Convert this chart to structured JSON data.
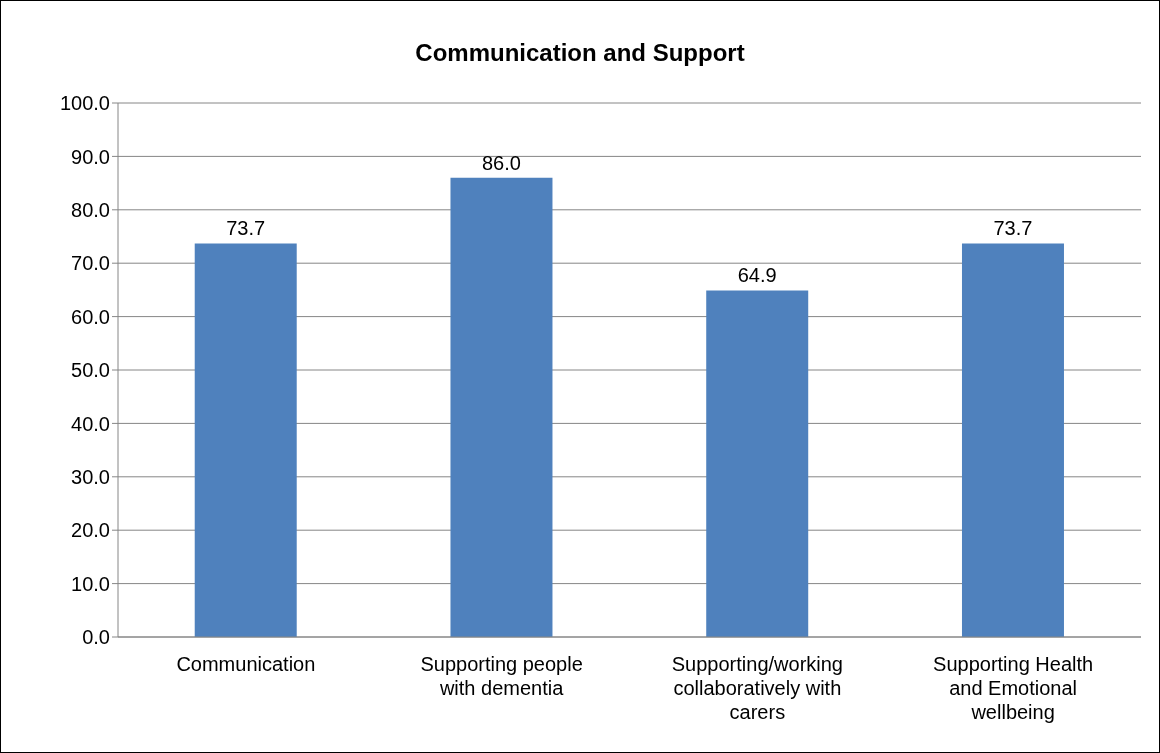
{
  "chart_data": {
    "type": "bar",
    "title": "Communication and Support",
    "categories": [
      "Communication",
      "Supporting people with dementia",
      "Supporting/working collaboratively with carers",
      "Supporting Health and Emotional wellbeing"
    ],
    "values": [
      73.7,
      86.0,
      64.9,
      73.7
    ],
    "value_labels": [
      "73.7",
      "86.0",
      "64.9",
      "73.7"
    ],
    "color": "#4f81bd",
    "ylim": [
      0,
      100
    ],
    "yticks": [
      {
        "value": 0,
        "label": "0.0"
      },
      {
        "value": 10,
        "label": "10.0"
      },
      {
        "value": 20,
        "label": "20.0"
      },
      {
        "value": 30,
        "label": "30.0"
      },
      {
        "value": 40,
        "label": "40.0"
      },
      {
        "value": 50,
        "label": "50.0"
      },
      {
        "value": 60,
        "label": "60.0"
      },
      {
        "value": 70,
        "label": "70.0"
      },
      {
        "value": 80,
        "label": "80.0"
      },
      {
        "value": 90,
        "label": "90.0"
      },
      {
        "value": 100,
        "label": "100.0"
      }
    ],
    "grid": "y"
  }
}
